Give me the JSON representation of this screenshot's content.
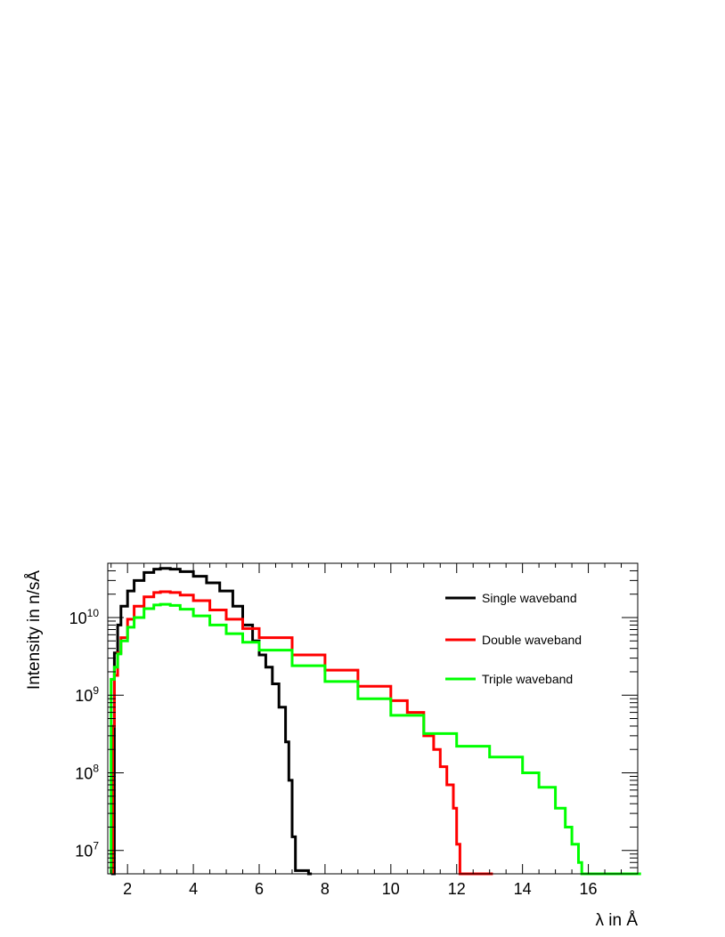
{
  "chart_data": {
    "type": "line",
    "step": true,
    "title": "",
    "xlabel": "λ in Å",
    "ylabel": "Intensity in n/sÅ",
    "xlim": [
      1.4,
      17.5
    ],
    "ylim": [
      5000000,
      50000000000
    ],
    "yscale": "log",
    "x_ticks": [
      2,
      4,
      6,
      8,
      10,
      12,
      14,
      16
    ],
    "y_ticks": [
      {
        "value": 10000000,
        "base": "10",
        "exp": "7"
      },
      {
        "value": 100000000,
        "base": "10",
        "exp": "8"
      },
      {
        "value": 1000000000,
        "base": "10",
        "exp": "9"
      },
      {
        "value": 10000000000,
        "base": "10",
        "exp": "10"
      }
    ],
    "legend_position": "top-right",
    "series": [
      {
        "name": "Single waveband",
        "color": "#000000",
        "x": [
          1.5,
          1.6,
          1.7,
          1.8,
          2.0,
          2.2,
          2.5,
          2.8,
          3.0,
          3.3,
          3.6,
          4.0,
          4.4,
          4.8,
          5.2,
          5.5,
          5.8,
          6.0,
          6.2,
          6.4,
          6.6,
          6.8,
          6.9,
          7.0,
          7.1,
          7.5
        ],
        "values": [
          5000000,
          3500000000,
          8000000000,
          14000000000,
          22000000000,
          30000000000,
          38000000000,
          42000000000,
          43000000000,
          42000000000,
          39000000000,
          34000000000,
          28000000000,
          22000000000,
          14000000000,
          8000000000,
          5000000000,
          3300000000,
          2300000000,
          1400000000,
          700000000,
          250000000,
          80000000,
          15000000,
          5500000,
          5000000
        ]
      },
      {
        "name": "Double waveband",
        "color": "#ff0000",
        "x": [
          1.55,
          1.6,
          1.7,
          1.8,
          2.0,
          2.2,
          2.5,
          2.8,
          3.0,
          3.3,
          3.6,
          4.0,
          4.5,
          5.0,
          5.5,
          6.0,
          7.0,
          8.0,
          9.0,
          10.0,
          10.5,
          11.0,
          11.3,
          11.5,
          11.7,
          11.9,
          12.0,
          12.1,
          12.2,
          13.0
        ],
        "values": [
          400000000,
          1800000000,
          3500000000,
          5500000000,
          9500000000,
          14000000000,
          18500000000,
          21000000000,
          21500000000,
          21000000000,
          19500000000,
          16500000000,
          12500000000,
          9500000000,
          7200000000,
          5500000000,
          3300000000,
          2100000000,
          1300000000,
          850000000,
          600000000,
          300000000,
          200000000,
          120000000,
          70000000,
          35000000,
          12000000,
          5000000,
          5000000,
          5000000
        ]
      },
      {
        "name": "Triple waveband",
        "color": "#00ff00",
        "x": [
          1.5,
          1.6,
          1.7,
          1.8,
          2.0,
          2.2,
          2.5,
          2.8,
          3.0,
          3.3,
          3.6,
          4.0,
          4.5,
          5.0,
          5.5,
          6.0,
          7.0,
          8.0,
          9.0,
          10.0,
          11.0,
          12.0,
          13.0,
          14.0,
          14.5,
          15.0,
          15.3,
          15.5,
          15.7,
          15.8,
          17.5
        ],
        "values": [
          1600000000,
          2300000000,
          3400000000,
          5000000000,
          7500000000,
          10000000000,
          13000000000,
          14500000000,
          14800000000,
          14300000000,
          12800000000,
          10500000000,
          8000000000,
          6200000000,
          4800000000,
          3800000000,
          2400000000,
          1500000000,
          900000000,
          550000000,
          320000000,
          220000000,
          160000000,
          100000000,
          65000000,
          35000000,
          20000000,
          12000000,
          7000000,
          5000000,
          5000000
        ]
      }
    ]
  }
}
